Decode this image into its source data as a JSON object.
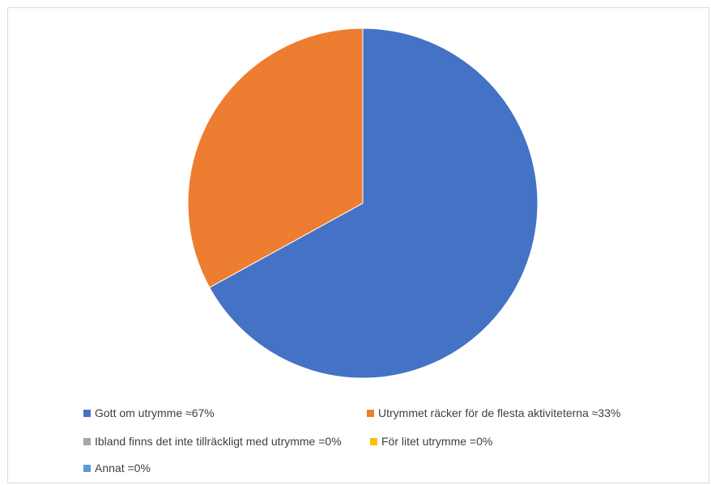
{
  "chart_data": {
    "type": "pie",
    "categories": [
      "Gott om utrymme ≈67%",
      "Utrymmet räcker för de flesta aktiviteterna ≈33%",
      "Ibland finns det inte tillräckligt med utrymme =0%",
      "För litet utrymme =0%",
      "Annat =0%"
    ],
    "values": [
      67,
      33,
      0,
      0,
      0
    ],
    "colors": [
      "#4472C4",
      "#ED7D31",
      "#A5A5A5",
      "#FFC000",
      "#5B9BD5"
    ],
    "title": "",
    "legend_position": "bottom"
  }
}
